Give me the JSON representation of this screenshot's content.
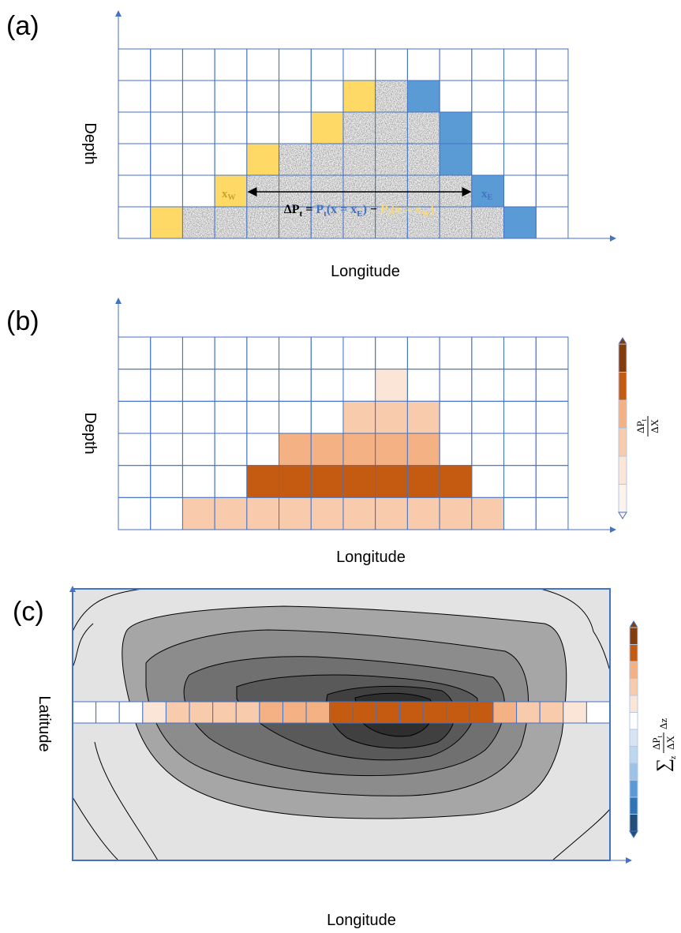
{
  "panel_a": {
    "label": "(a)",
    "y_axis": "Depth",
    "x_axis": "Longitude",
    "west": {
      "main": "x",
      "sub": "W"
    },
    "east": {
      "main": "x",
      "sub": "E"
    },
    "formula": [
      "ΔP",
      "t",
      " = ",
      "P",
      "t",
      "(x = x",
      "E",
      ")",
      " − ",
      "P",
      "t",
      "(x = x",
      "W",
      ")"
    ]
  },
  "panel_b": {
    "label": "(b)",
    "y_axis": "Depth",
    "x_axis": "Longitude",
    "colorbar_label": {
      "num": "ΔP",
      "num_sub": "t",
      "den": "ΔX"
    }
  },
  "panel_c": {
    "label": "(c)",
    "y_axis": "Latitude",
    "x_axis": "Longitude",
    "colorbar_label": {
      "sum": "∑",
      "sum_sub": "z",
      "num": "ΔP",
      "num_sub": "t",
      "den": "ΔX",
      "tail": "Δz"
    }
  }
}
